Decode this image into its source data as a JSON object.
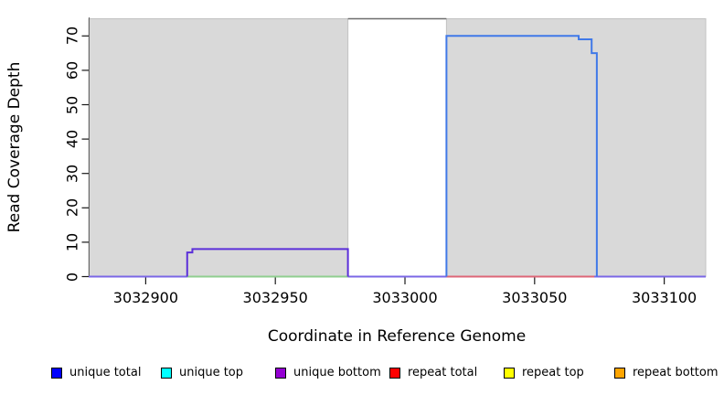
{
  "chart_data": {
    "type": "line",
    "title": "",
    "xlabel": "Coordinate in Reference Genome",
    "ylabel": "Read Coverage Depth",
    "xlim": [
      3032878,
      3033116
    ],
    "ylim": [
      0,
      75
    ],
    "xticks": [
      3032900,
      3032950,
      3033000,
      3033050,
      3033100
    ],
    "yticks": [
      0,
      10,
      20,
      30,
      40,
      50,
      60,
      70
    ],
    "grid": false,
    "plot_bg": "#ffffff",
    "panel_fill": "#d9d9d9",
    "panel_border": "#c2c2c2",
    "axis_color": "#1a1a1a",
    "shaded_regions": [
      {
        "x0": 3032878,
        "x1": 3032978
      },
      {
        "x0": 3033016,
        "x1": 3033116
      }
    ],
    "series": [
      {
        "name": "baseline violet",
        "color": "#7b67e6",
        "width": 2,
        "points": [
          [
            3032878,
            0
          ],
          [
            3033116,
            0
          ]
        ]
      },
      {
        "name": "baseline green",
        "color": "#8fce8f",
        "width": 2,
        "points": [
          [
            3032916,
            0
          ],
          [
            3032978,
            0
          ]
        ]
      },
      {
        "name": "baseline red",
        "color": "#dd6677",
        "width": 2,
        "points": [
          [
            3033016,
            0
          ],
          [
            3033073,
            0
          ]
        ]
      },
      {
        "name": "unique bottom plateau",
        "color": "#5b2fd9",
        "width": 2,
        "points": [
          [
            3032916,
            0
          ],
          [
            3032916,
            7
          ],
          [
            3032918,
            7
          ],
          [
            3032918,
            8
          ],
          [
            3032978,
            8
          ],
          [
            3032978,
            0
          ]
        ]
      },
      {
        "name": "unique total plateau",
        "color": "#4079e8",
        "width": 2,
        "points": [
          [
            3033016,
            0
          ],
          [
            3033016,
            70
          ],
          [
            3033067,
            70
          ],
          [
            3033067,
            69
          ],
          [
            3033072,
            69
          ],
          [
            3033072,
            65
          ],
          [
            3033074,
            65
          ],
          [
            3033074,
            0
          ]
        ]
      },
      {
        "name": "clipped top cap",
        "color": "#6e6e6e",
        "width": 1.5,
        "points": [
          [
            3032978,
            75
          ],
          [
            3033016,
            75
          ]
        ]
      }
    ],
    "legend": {
      "position": "bottom",
      "items": [
        {
          "label": "unique total",
          "color": "#0000ff"
        },
        {
          "label": "unique top",
          "color": "#00ffff"
        },
        {
          "label": "unique bottom",
          "color": "#9400d3"
        },
        {
          "label": "repeat total",
          "color": "#ff0000"
        },
        {
          "label": "repeat top",
          "color": "#ffff00"
        },
        {
          "label": "repeat bottom",
          "color": "#ffa500"
        }
      ]
    }
  }
}
